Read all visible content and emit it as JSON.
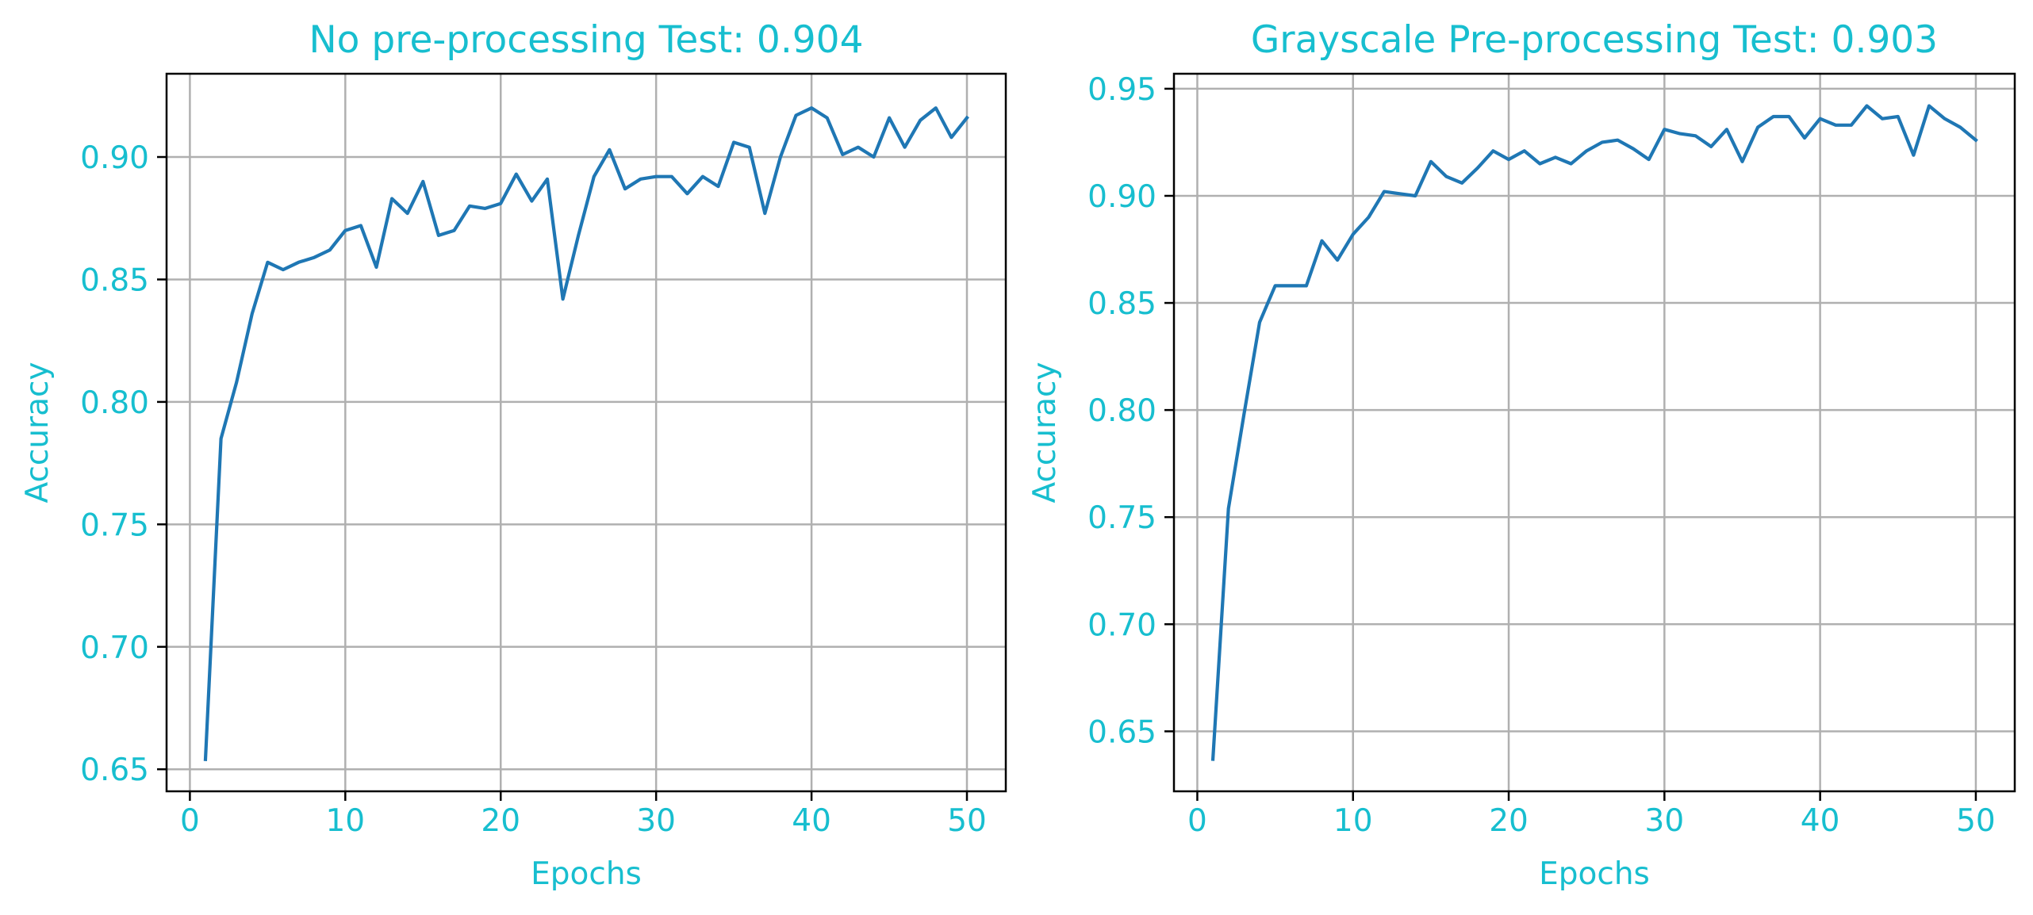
{
  "colors": {
    "text": "#17becf",
    "line": "#1f77b4",
    "grid": "#b0b0b0",
    "axes": "#000000",
    "background": "#ffffff"
  },
  "chart_data": [
    {
      "type": "line",
      "title": "No pre-processing Test: 0.904",
      "xlabel": "Epochs",
      "ylabel": "Accuracy",
      "xlim": [
        -1.5,
        52.5
      ],
      "ylim": [
        0.641,
        0.934
      ],
      "xticks": [
        0,
        10,
        20,
        30,
        40,
        50
      ],
      "xticklabels": [
        "0",
        "10",
        "20",
        "30",
        "40",
        "50"
      ],
      "yticks": [
        0.65,
        0.7,
        0.75,
        0.8,
        0.85,
        0.9
      ],
      "yticklabels": [
        "0.65",
        "0.70",
        "0.75",
        "0.80",
        "0.85",
        "0.90"
      ],
      "grid": true,
      "x": [
        1,
        2,
        3,
        4,
        5,
        6,
        7,
        8,
        9,
        10,
        11,
        12,
        13,
        14,
        15,
        16,
        17,
        18,
        19,
        20,
        21,
        22,
        23,
        24,
        25,
        26,
        27,
        28,
        29,
        30,
        31,
        32,
        33,
        34,
        35,
        36,
        37,
        38,
        39,
        40,
        41,
        42,
        43,
        44,
        45,
        46,
        47,
        48,
        49,
        50
      ],
      "series": [
        {
          "values": [
            0.654,
            0.785,
            0.808,
            0.836,
            0.857,
            0.854,
            0.857,
            0.859,
            0.862,
            0.87,
            0.872,
            0.855,
            0.883,
            0.877,
            0.89,
            0.868,
            0.87,
            0.88,
            0.879,
            0.881,
            0.893,
            0.882,
            0.891,
            0.842,
            0.868,
            0.892,
            0.903,
            0.887,
            0.891,
            0.892,
            0.892,
            0.885,
            0.892,
            0.888,
            0.906,
            0.904,
            0.877,
            0.9,
            0.917,
            0.92,
            0.916,
            0.901,
            0.904,
            0.9,
            0.916,
            0.904,
            0.915,
            0.92,
            0.908,
            0.916
          ]
        }
      ]
    },
    {
      "type": "line",
      "title": "Grayscale Pre-processing Test: 0.903",
      "xlabel": "Epochs",
      "ylabel": "Accuracy",
      "xlim": [
        -1.5,
        52.5
      ],
      "ylim": [
        0.622,
        0.957
      ],
      "xticks": [
        0,
        10,
        20,
        30,
        40,
        50
      ],
      "xticklabels": [
        "0",
        "10",
        "20",
        "30",
        "40",
        "50"
      ],
      "yticks": [
        0.65,
        0.7,
        0.75,
        0.8,
        0.85,
        0.9,
        0.95
      ],
      "yticklabels": [
        "0.65",
        "0.70",
        "0.75",
        "0.80",
        "0.85",
        "0.90",
        "0.95"
      ],
      "grid": true,
      "x": [
        1,
        2,
        3,
        4,
        5,
        6,
        7,
        8,
        9,
        10,
        11,
        12,
        13,
        14,
        15,
        16,
        17,
        18,
        19,
        20,
        21,
        22,
        23,
        24,
        25,
        26,
        27,
        28,
        29,
        30,
        31,
        32,
        33,
        34,
        35,
        36,
        37,
        38,
        39,
        40,
        41,
        42,
        43,
        44,
        45,
        46,
        47,
        48,
        49,
        50
      ],
      "series": [
        {
          "values": [
            0.637,
            0.754,
            0.798,
            0.841,
            0.858,
            0.858,
            0.858,
            0.879,
            0.87,
            0.882,
            0.89,
            0.902,
            0.901,
            0.9,
            0.916,
            0.909,
            0.906,
            0.913,
            0.921,
            0.917,
            0.921,
            0.915,
            0.918,
            0.915,
            0.921,
            0.925,
            0.926,
            0.922,
            0.917,
            0.931,
            0.929,
            0.928,
            0.923,
            0.931,
            0.916,
            0.932,
            0.937,
            0.937,
            0.927,
            0.936,
            0.933,
            0.933,
            0.942,
            0.936,
            0.937,
            0.919,
            0.942,
            0.936,
            0.932,
            0.926
          ]
        }
      ]
    }
  ]
}
